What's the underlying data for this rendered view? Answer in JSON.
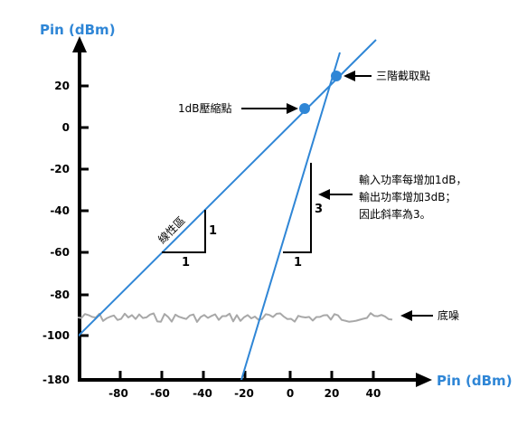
{
  "y_axis_title": "Pin (dBm)",
  "x_axis_title": "Pin (dBm)",
  "y_ticks": [
    "20",
    "0",
    "-20",
    "-40",
    "-60",
    "-80",
    "-100",
    "-180"
  ],
  "x_ticks": [
    "-80",
    "-60",
    "-40",
    "-20",
    "0",
    "20",
    "40"
  ],
  "labels": {
    "compression_point": "1dB壓縮點",
    "intercept_point": "三階截取點",
    "linear_region": "線性區",
    "noise_floor": "底噪",
    "slope_note": [
      "輸入功率每增加1dB，",
      "輸出功率增加3dB；",
      "因此斜率為3。"
    ],
    "tri1_vertical": "1",
    "tri1_horizontal": "1",
    "tri2_vertical": "3",
    "tri2_horizontal": "1"
  },
  "colors": {
    "line": "#2f86d6",
    "noise": "#a8a8a8",
    "axis": "#000000"
  }
}
